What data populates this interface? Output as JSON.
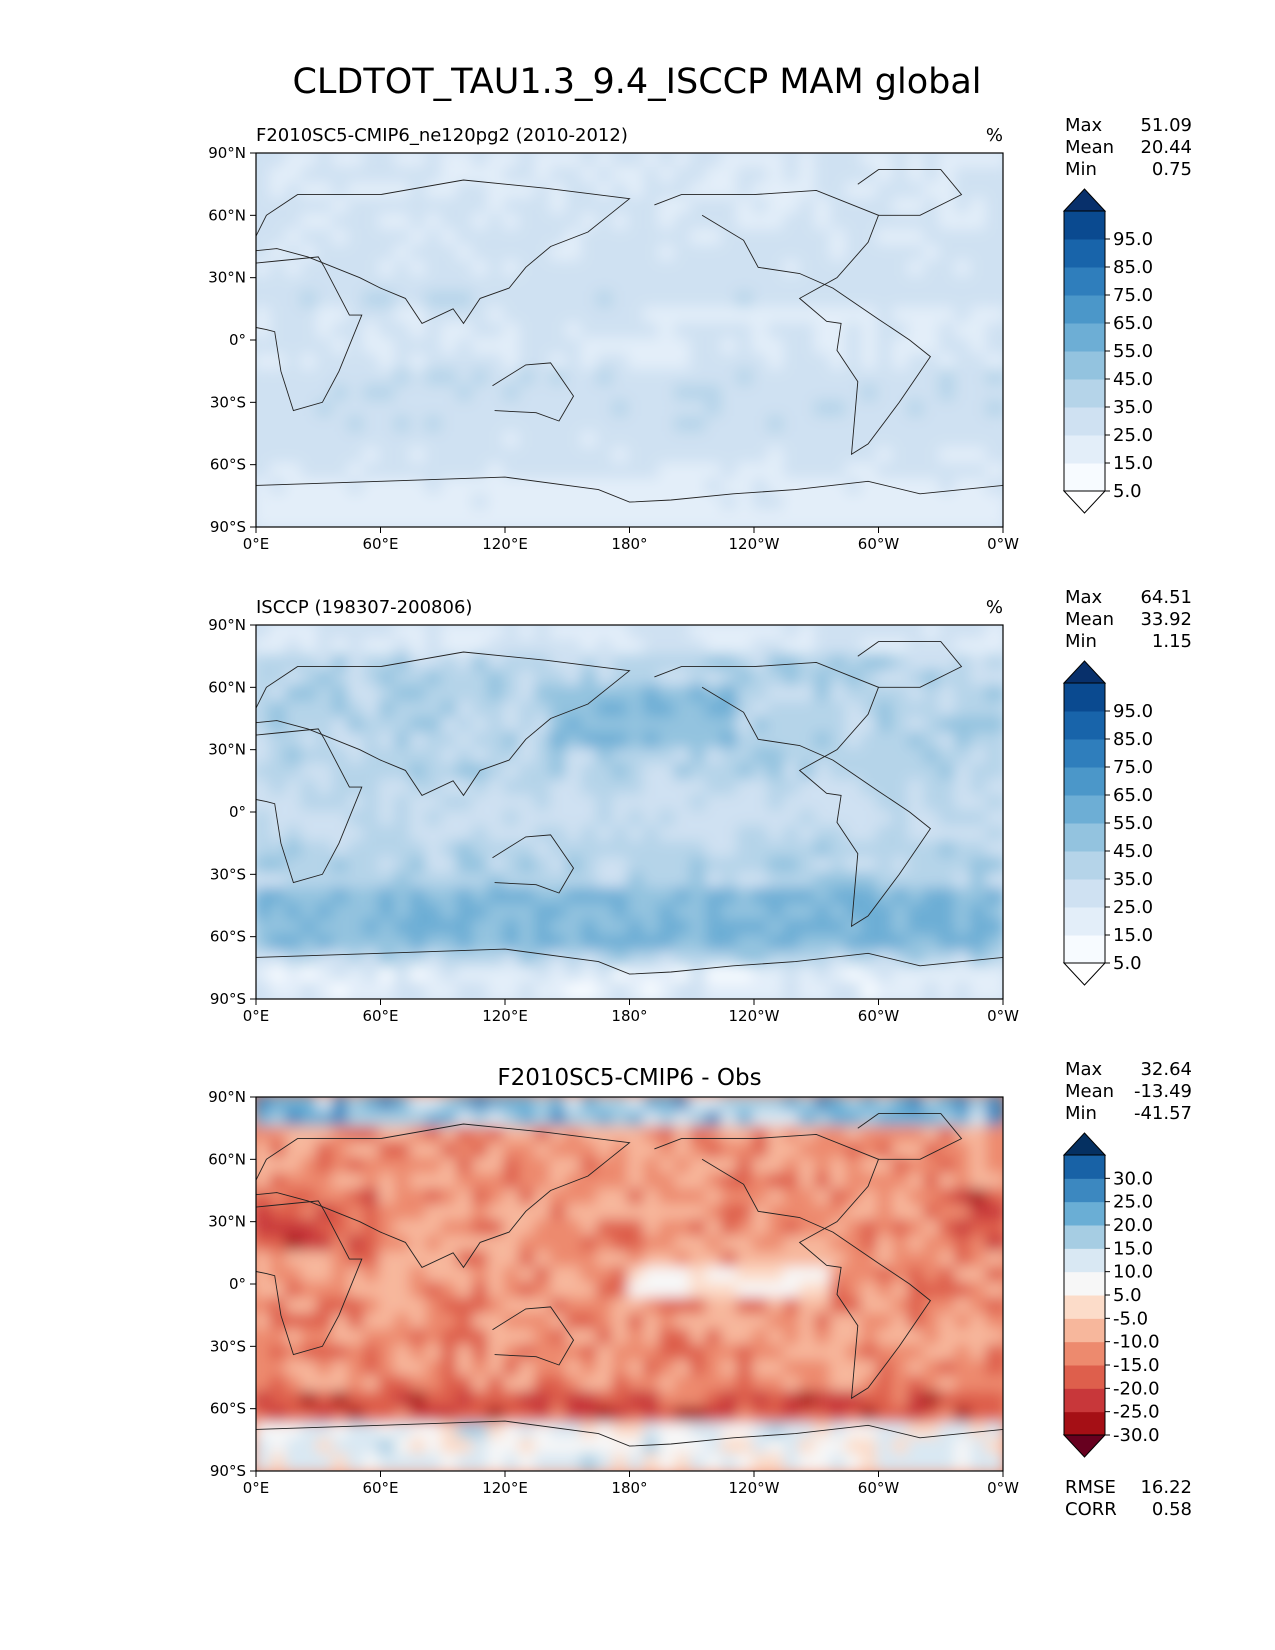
{
  "figure": {
    "title": "CLDTOT_TAU1.3_9.4_ISCCP MAM global"
  },
  "axes": {
    "lat_ticks": [
      "90°N",
      "60°N",
      "30°N",
      "0°",
      "30°S",
      "60°S",
      "90°S"
    ],
    "lon_ticks": [
      "0°E",
      "60°E",
      "120°E",
      "180°",
      "120°W",
      "60°W",
      "0°W"
    ]
  },
  "chart_data": [
    {
      "type": "heatmap",
      "title_left": "F2010SC5-CMIP6_ne120pg2 (2010-2012)",
      "title_center": "",
      "units": "%",
      "stats": [
        {
          "label": "Max",
          "value": "51.09"
        },
        {
          "label": "Mean",
          "value": "20.44"
        },
        {
          "label": "Min",
          "value": "0.75"
        }
      ],
      "extra_stats": [],
      "colorbar": {
        "ticks": [
          "95.0",
          "85.0",
          "75.0",
          "65.0",
          "55.0",
          "45.0",
          "35.0",
          "25.0",
          "15.0",
          "5.0"
        ],
        "colors": [
          "#f7fbff",
          "#e3eef9",
          "#cfe1f2",
          "#b5d4e9",
          "#93c3df",
          "#6daed5",
          "#4b97c9",
          "#2f7ebc",
          "#1864aa",
          "#0a4a90"
        ],
        "extend_low": "#ffffff",
        "extend_high": "#08306b"
      }
    },
    {
      "type": "heatmap",
      "title_left": "ISCCP (198307-200806)",
      "title_center": "",
      "units": "%",
      "stats": [
        {
          "label": "Max",
          "value": "64.51"
        },
        {
          "label": "Mean",
          "value": "33.92"
        },
        {
          "label": "Min",
          "value": "1.15"
        }
      ],
      "extra_stats": [],
      "colorbar": {
        "ticks": [
          "95.0",
          "85.0",
          "75.0",
          "65.0",
          "55.0",
          "45.0",
          "35.0",
          "25.0",
          "15.0",
          "5.0"
        ],
        "colors": [
          "#f7fbff",
          "#e3eef9",
          "#cfe1f2",
          "#b5d4e9",
          "#93c3df",
          "#6daed5",
          "#4b97c9",
          "#2f7ebc",
          "#1864aa",
          "#0a4a90"
        ],
        "extend_low": "#ffffff",
        "extend_high": "#08306b"
      }
    },
    {
      "type": "heatmap",
      "title_left": "",
      "title_center": "F2010SC5-CMIP6 - Obs",
      "units": "",
      "stats": [
        {
          "label": "Max",
          "value": "32.64"
        },
        {
          "label": "Mean",
          "value": "-13.49"
        },
        {
          "label": "Min",
          "value": "-41.57"
        }
      ],
      "extra_stats": [
        {
          "label": "RMSE",
          "value": "16.22"
        },
        {
          "label": "CORR",
          "value": "0.58"
        }
      ],
      "colorbar": {
        "ticks": [
          "30.0",
          "25.0",
          "20.0",
          "15.0",
          "10.0",
          "5.0",
          "-5.0",
          "-10.0",
          "-15.0",
          "-20.0",
          "-25.0",
          "-30.0"
        ],
        "colors": [
          "#a50f15",
          "#c8373a",
          "#de5f4c",
          "#ed8a6e",
          "#f7b79c",
          "#fcdcc9",
          "#f7f7f7",
          "#d9e8f3",
          "#a6cde3",
          "#6aaed5",
          "#3c88c0",
          "#1862a6"
        ],
        "extend_low": "#67001f",
        "extend_high": "#053061"
      }
    }
  ]
}
